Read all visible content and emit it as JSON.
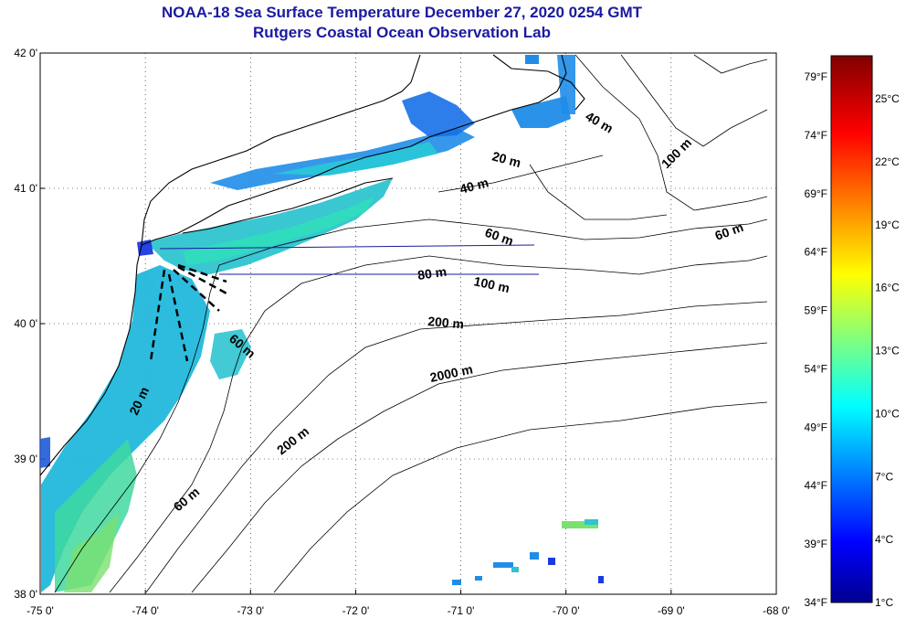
{
  "title": {
    "line1": "NOAA-18 Sea Surface Temperature December 27, 2020 0254 GMT",
    "line2": "Rutgers Coastal Ocean Observation Lab"
  },
  "map": {
    "lon_range": [
      -75,
      -68
    ],
    "lat_range": [
      38,
      42
    ],
    "x_ticks": [
      "-75 0'",
      "-74 0'",
      "-73 0'",
      "-72 0'",
      "-71 0'",
      "-70 0'",
      "-69 0'",
      "-68 0'"
    ],
    "y_ticks": [
      "42 0'",
      "41 0'",
      "40 0'",
      "39 0'",
      "38 0'"
    ],
    "grid": "dotted",
    "contour_labels": [
      "40 m",
      "100 m",
      "20 m",
      "40 m",
      "60 m",
      "60 m",
      "80 m",
      "100 m",
      "200 m",
      "60 m",
      "2000 m",
      "20 m",
      "200 m",
      "60 m"
    ],
    "colors": {
      "land": "#ffffff",
      "coast": "#000000",
      "contour": "#000000",
      "transect": "#1a1aa0"
    }
  },
  "colorbar": {
    "f_labels": [
      "79°F",
      "74°F",
      "69°F",
      "64°F",
      "59°F",
      "54°F",
      "49°F",
      "44°F",
      "39°F",
      "34°F"
    ],
    "c_labels": [
      "25°C",
      "22°C",
      "19°C",
      "16°C",
      "13°C",
      "10°C",
      "7°C",
      "4°C",
      "1°C"
    ],
    "colormap": "jet",
    "range_f": [
      34,
      81
    ]
  }
}
